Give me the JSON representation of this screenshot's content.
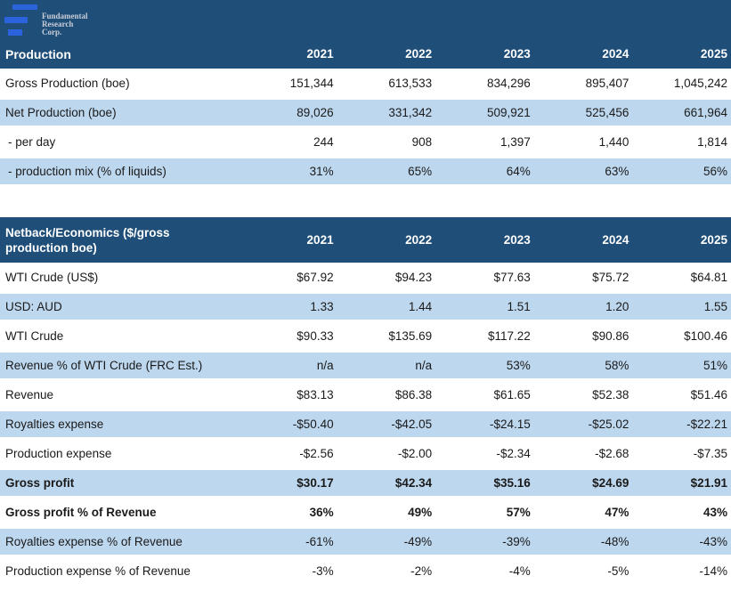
{
  "logo": {
    "company_lines": [
      "Fundamental",
      "Research",
      "Corp."
    ]
  },
  "years": [
    "2021",
    "2022",
    "2023",
    "2024",
    "2025"
  ],
  "colors": {
    "header_navy": "#1F4E79",
    "row_shade_blue": "#BDD7EE",
    "logo_blue": "#2A63DC",
    "logo_text_gray": "#C9CED8"
  },
  "production_table": {
    "title": "Production",
    "rows": [
      {
        "label": "Gross Production (boe)",
        "values": [
          "151,344",
          "613,533",
          "834,296",
          "895,407",
          "1,045,242"
        ],
        "shaded": false,
        "bold": false,
        "indent": false
      },
      {
        "label": "Net Production (boe)",
        "values": [
          "89,026",
          "331,342",
          "509,921",
          "525,456",
          "661,964"
        ],
        "shaded": true,
        "bold": false,
        "indent": false
      },
      {
        "label": "- per day",
        "values": [
          "244",
          "908",
          "1,397",
          "1,440",
          "1,814"
        ],
        "shaded": false,
        "bold": false,
        "indent": true
      },
      {
        "label": "- production mix (% of liquids)",
        "values": [
          "31%",
          "65%",
          "64%",
          "63%",
          "56%"
        ],
        "shaded": true,
        "bold": false,
        "indent": true
      }
    ]
  },
  "netback_table": {
    "title": "Netback/Economics ($/gross production boe)",
    "rows": [
      {
        "label": "WTI Crude (US$)",
        "values": [
          "$67.92",
          "$94.23",
          "$77.63",
          "$75.72",
          "$64.81"
        ],
        "shaded": false,
        "bold": false,
        "indent": false
      },
      {
        "label": "USD: AUD",
        "values": [
          "1.33",
          "1.44",
          "1.51",
          "1.20",
          "1.55"
        ],
        "shaded": true,
        "bold": false,
        "indent": false
      },
      {
        "label": "WTI Crude",
        "values": [
          "$90.33",
          "$135.69",
          "$117.22",
          "$90.86",
          "$100.46"
        ],
        "shaded": false,
        "bold": false,
        "indent": false
      },
      {
        "label": "Revenue % of WTI Crude (FRC Est.)",
        "values": [
          "n/a",
          "n/a",
          "53%",
          "58%",
          "51%"
        ],
        "shaded": true,
        "bold": false,
        "indent": false
      },
      {
        "label": "Revenue",
        "values": [
          "$83.13",
          "$86.38",
          "$61.65",
          "$52.38",
          "$51.46"
        ],
        "shaded": false,
        "bold": false,
        "indent": false
      },
      {
        "label": "Royalties expense",
        "values": [
          "-$50.40",
          "-$42.05",
          "-$24.15",
          "-$25.02",
          "-$22.21"
        ],
        "shaded": true,
        "bold": false,
        "indent": false
      },
      {
        "label": "Production expense",
        "values": [
          "-$2.56",
          "-$2.00",
          "-$2.34",
          "-$2.68",
          "-$7.35"
        ],
        "shaded": false,
        "bold": false,
        "indent": false
      },
      {
        "label": "Gross profit",
        "values": [
          "$30.17",
          "$42.34",
          "$35.16",
          "$24.69",
          "$21.91"
        ],
        "shaded": true,
        "bold": true,
        "indent": false
      },
      {
        "label": "Gross profit % of Revenue",
        "values": [
          "36%",
          "49%",
          "57%",
          "47%",
          "43%"
        ],
        "shaded": false,
        "bold": true,
        "indent": false
      },
      {
        "label": "Royalties expense % of Revenue",
        "values": [
          "-61%",
          "-49%",
          "-39%",
          "-48%",
          "-43%"
        ],
        "shaded": true,
        "bold": false,
        "indent": false
      },
      {
        "label": "Production expense % of Revenue",
        "values": [
          "-3%",
          "-2%",
          "-4%",
          "-5%",
          "-14%"
        ],
        "shaded": false,
        "bold": false,
        "indent": false
      }
    ]
  }
}
